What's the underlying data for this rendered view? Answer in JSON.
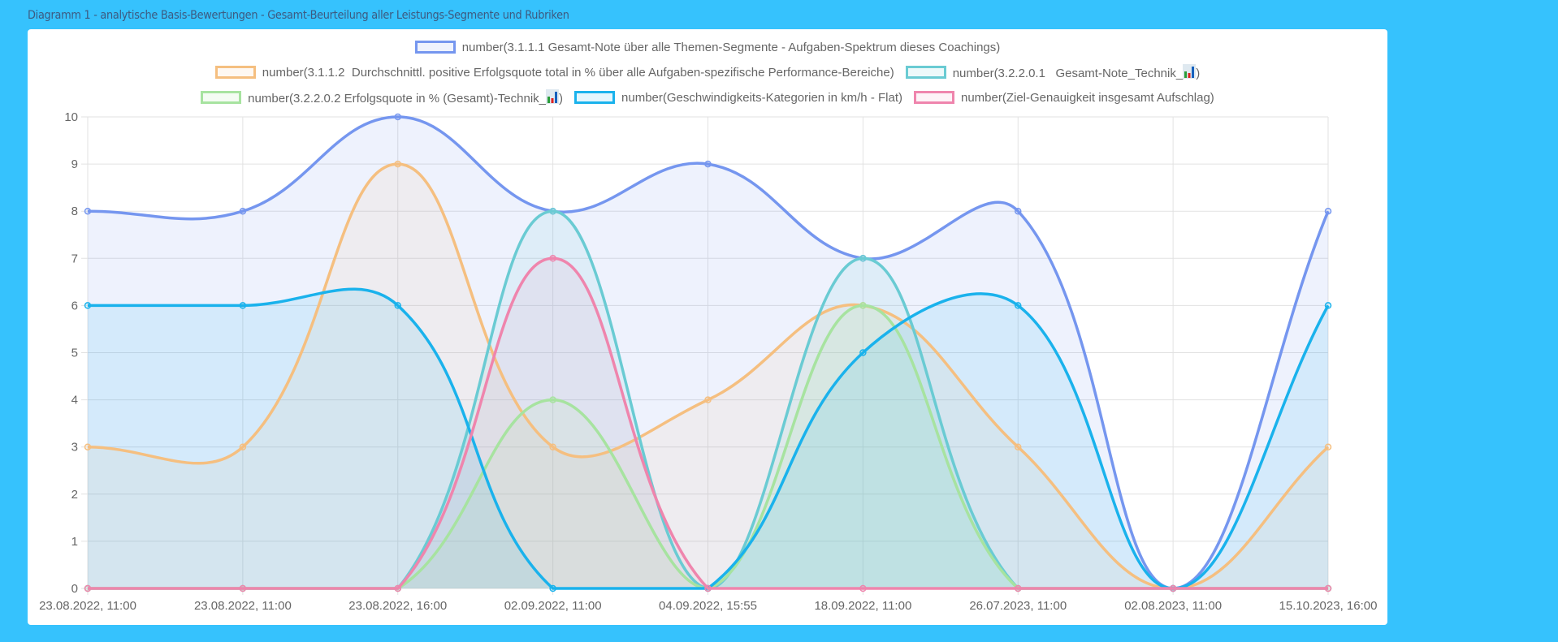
{
  "page_title": "Diagramm 1 - analytische Basis-Bewertungen - Gesamt-Beurteilung aller Leistungs-Segmente und Rubriken",
  "chart_data": {
    "type": "line",
    "smooth": true,
    "fill": "origin",
    "grid": true,
    "legend_position": "top",
    "ylim": [
      0,
      10
    ],
    "yticks": [
      "0",
      "1",
      "2",
      "3",
      "4",
      "5",
      "6",
      "7",
      "8",
      "9",
      "10"
    ],
    "categories": [
      "23.08.2022, 11:00",
      "23.08.2022, 11:00",
      "23.08.2022, 16:00",
      "02.09.2022, 11:00",
      "04.09.2022, 15:55",
      "18.09.2022, 11:00",
      "26.07.2023, 11:00",
      "02.08.2023, 11:00",
      "15.10.2023, 16:00"
    ],
    "series": [
      {
        "name": "number(3.1.1.1 Gesamt-Note über alle Themen-Segmente - Aufgaben-Spektrum dieses Coachings)",
        "label_before": "number(3.1.1.1 Gesamt-Note über alle Themen-Segmente - Aufgaben-Spektrum dieses Coachings)",
        "icon": "",
        "label_after": "",
        "color": "#7596ef",
        "fill": "rgba(117,150,239,0.12)",
        "values": [
          8,
          8,
          10,
          8,
          9,
          7,
          8,
          0,
          8
        ]
      },
      {
        "name": "number(3.1.1.2  Durchschnittl. positive Erfolgsquote total in % über alle Aufgaben-spezifische Performance-Bereiche)",
        "label_before": "number(3.1.1.2  Durchschnittl. positive Erfolgsquote total in % über alle Aufgaben-spezifische Performance-Bereiche)",
        "icon": "",
        "label_after": "",
        "color": "#f5bf80",
        "fill": "rgba(245,191,128,0.10)",
        "values": [
          3,
          3,
          9,
          3,
          4,
          6,
          3,
          0,
          3
        ]
      },
      {
        "name": "number(3.2.2.0.1   Gesamt-Note_Technik_📊)",
        "label_before": "number(3.2.2.0.1   Gesamt-Note_Technik_",
        "icon": "bar-chart-icon",
        "label_after": ")",
        "color": "#6acbd3",
        "fill": "rgba(106,203,211,0.12)",
        "values": [
          0,
          0,
          0,
          8,
          0,
          7,
          0,
          0,
          0
        ]
      },
      {
        "name": "number(3.2.2.0.2 Erfolgsquote in % (Gesamt)-Technik_📊)",
        "label_before": "number(3.2.2.0.2 Erfolgsquote in % (Gesamt)-Technik_",
        "icon": "bar-chart-icon",
        "label_after": ")",
        "color": "#a7e3a0",
        "fill": "rgba(167,227,160,0.12)",
        "values": [
          0,
          0,
          0,
          4,
          0,
          6,
          0,
          0,
          0
        ]
      },
      {
        "name": "number(Geschwindigkeits-Kategorien in km/h - Flat)",
        "label_before": "number(Geschwindigkeits-Kategorien in km/h - Flat)",
        "icon": "",
        "label_after": "",
        "color": "#1ab2ec",
        "fill": "rgba(26,178,236,0.12)",
        "values": [
          6,
          6,
          6,
          0,
          0,
          5,
          6,
          0,
          6
        ]
      },
      {
        "name": "number(Ziel-Genauigkeit insgesamt Aufschlag)",
        "label_before": "number(Ziel-Genauigkeit insgesamt Aufschlag)",
        "icon": "",
        "label_after": "",
        "color": "#ef85ad",
        "fill": "rgba(239,133,173,0.10)",
        "values": [
          0,
          0,
          0,
          7,
          0,
          0,
          0,
          0,
          0
        ]
      }
    ],
    "legend_rows": [
      [
        0
      ],
      [
        1,
        2
      ],
      [
        3,
        4,
        5
      ]
    ]
  }
}
